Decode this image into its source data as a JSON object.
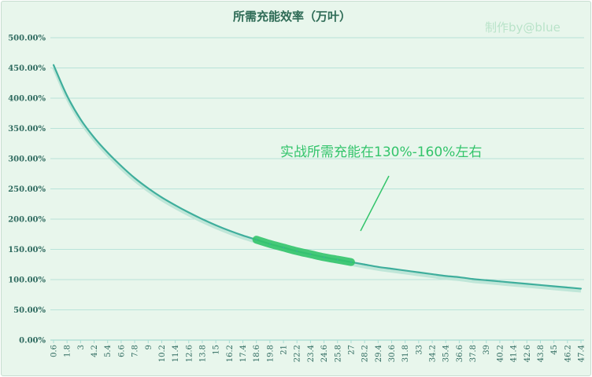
{
  "chart_data": {
    "type": "line",
    "title": "所需充能效率（万叶）",
    "watermark": "制作by@blue",
    "xlabel": "",
    "ylabel": "",
    "ylim": [
      0,
      500
    ],
    "yticks": [
      "0.00%",
      "50.00%",
      "100.00%",
      "150.00%",
      "200.00%",
      "250.00%",
      "300.00%",
      "350.00%",
      "400.00%",
      "450.00%",
      "500.00%"
    ],
    "xticks": [
      "0.6",
      "1.8",
      "3",
      "4.2",
      "5.4",
      "6.6",
      "7.8",
      "9",
      "10.2",
      "11.4",
      "12.6",
      "13.8",
      "15",
      "16.2",
      "17.4",
      "18.6",
      "19.8",
      "21",
      "22.2",
      "23.4",
      "24.6",
      "25.8",
      "27",
      "28.2",
      "29.4",
      "30.6",
      "31.8",
      "33",
      "34.2",
      "35.4",
      "36.6",
      "37.8",
      "39",
      "40.2",
      "41.4",
      "42.6",
      "43.8",
      "45",
      "46.2",
      "47.4"
    ],
    "x": [
      0.6,
      1.8,
      3,
      4.2,
      5.4,
      6.6,
      7.8,
      9,
      10.2,
      11.4,
      12.6,
      13.8,
      15,
      16.2,
      17.4,
      18.6,
      19.8,
      21,
      22.2,
      23.4,
      24.6,
      25.8,
      27,
      28.2,
      29.4,
      30.6,
      31.8,
      33,
      34.2,
      35.4,
      36.6,
      37.8,
      39,
      40.2,
      41.4,
      42.6,
      43.8,
      45,
      46.2,
      47.4
    ],
    "values": [
      455,
      404,
      365,
      335,
      310,
      288,
      268,
      251,
      236,
      223,
      211,
      200,
      190,
      181,
      173,
      166,
      159,
      153,
      147,
      142,
      137,
      133,
      129,
      125,
      121,
      118,
      115,
      112,
      109,
      106,
      104,
      101,
      99,
      97,
      95,
      93,
      91,
      89,
      87,
      85
    ],
    "highlight": {
      "y_from": 130,
      "y_to": 160,
      "color": "#33c46b"
    },
    "annotation": "实战所需充能在130%-160%左右",
    "line_color": "#3fae9c",
    "grid": true,
    "grid_color": "#a9dcd3",
    "background": "#e8f6ec"
  }
}
